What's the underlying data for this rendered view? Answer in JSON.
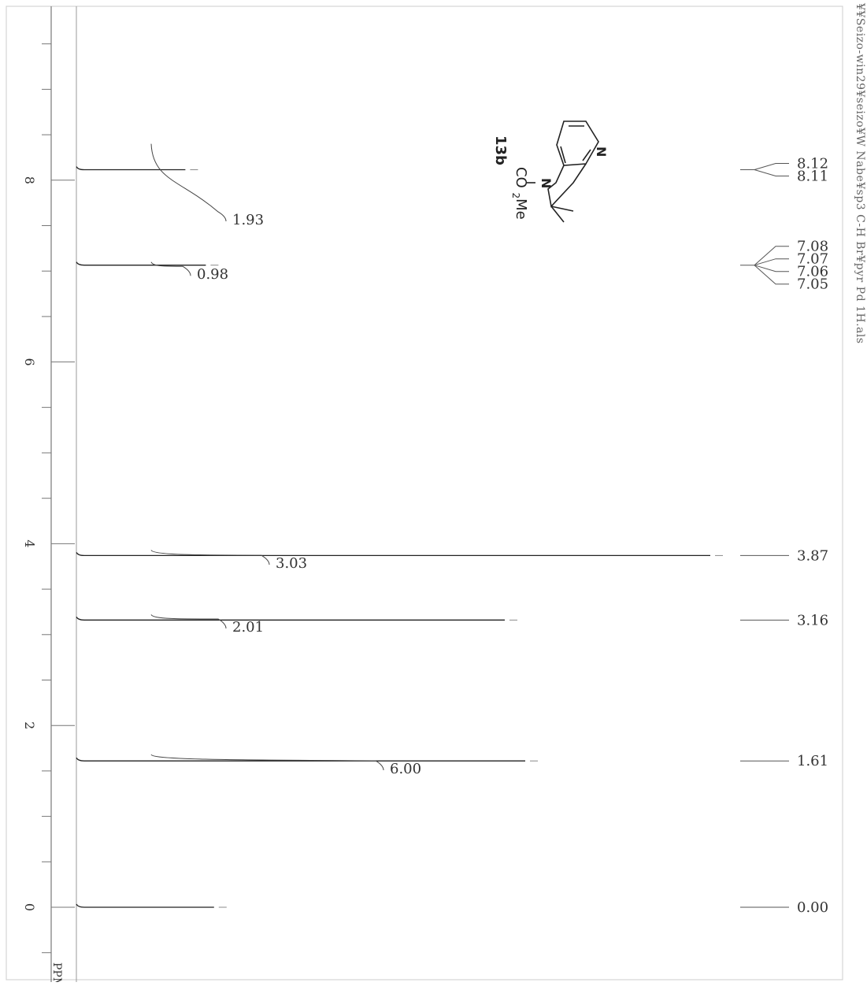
{
  "chart_data": {
    "type": "line",
    "title": "",
    "xlabel": "PPM",
    "ylabel": "",
    "x_axis": "chemical shift (ppm)",
    "xlim": [
      -0.8,
      9.6
    ],
    "ticks": [
      "8",
      "6",
      "4",
      "2",
      "0"
    ],
    "axis_unit_label": "PPM",
    "file_label": "¥¥Seizo-win29¥seizo¥W Nabe¥sp3 C-H Br¥pyr Pd 1H.als",
    "compound_label": "13b",
    "compound_substituent": "CO2Me",
    "peaks": [
      {
        "ppm": 8.115,
        "relative_height": 0.17
      },
      {
        "ppm": 7.065,
        "relative_height": 0.22
      },
      {
        "ppm": 3.87,
        "relative_height": 3.0
      },
      {
        "ppm": 3.16,
        "relative_height": 0.95
      },
      {
        "ppm": 1.61,
        "relative_height": 1.0
      },
      {
        "ppm": 0.0,
        "relative_height": 0.24
      }
    ],
    "integrals": [
      {
        "from": 8.4,
        "to": 7.6,
        "value": "1.93"
      },
      {
        "from": 7.1,
        "to": 7.0,
        "value": "0.98"
      },
      {
        "from": 3.93,
        "to": 3.82,
        "value": "3.03"
      },
      {
        "from": 3.22,
        "to": 3.12,
        "value": "2.01"
      },
      {
        "from": 1.68,
        "to": 1.56,
        "value": "6.00"
      }
    ],
    "peak_labels": [
      {
        "group": "8.12/8.11",
        "center_ppm": 8.115,
        "labels": [
          "8.12",
          "8.11"
        ]
      },
      {
        "group": "7.08-7.05",
        "center_ppm": 7.065,
        "labels": [
          "7.08",
          "7.07",
          "7.06",
          "7.05"
        ]
      },
      {
        "group": "3.87",
        "center_ppm": 3.87,
        "labels": [
          "3.87"
        ]
      },
      {
        "group": "3.16",
        "center_ppm": 3.16,
        "labels": [
          "3.16"
        ]
      },
      {
        "group": "1.61",
        "center_ppm": 1.61,
        "labels": [
          "1.61"
        ]
      },
      {
        "group": "0.00",
        "center_ppm": 0.0,
        "labels": [
          "0.00"
        ]
      }
    ]
  }
}
